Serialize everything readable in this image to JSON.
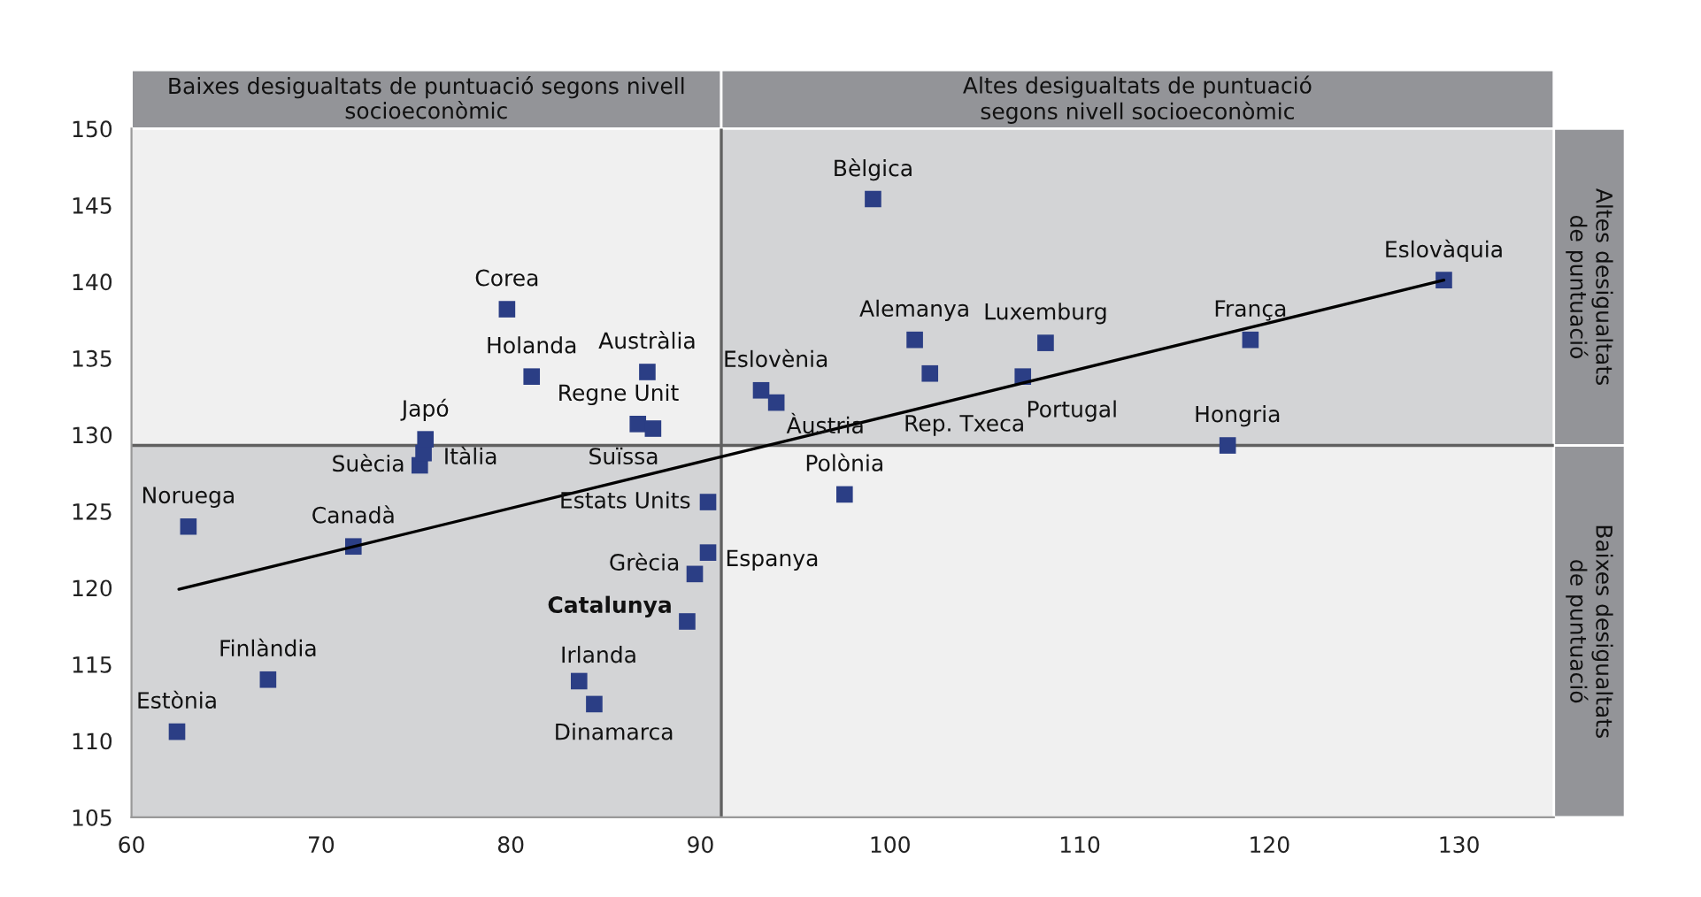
{
  "chart_data": {
    "type": "scatter",
    "xlim": [
      60,
      135
    ],
    "ylim": [
      105,
      150
    ],
    "xticks": [
      60,
      70,
      80,
      90,
      100,
      110,
      120,
      130
    ],
    "yticks": [
      105,
      110,
      115,
      120,
      125,
      130,
      135,
      140,
      145,
      150
    ],
    "grid": false,
    "series": [
      {
        "color": "#2b3e85",
        "marker": "square",
        "x": [
          62.4,
          67.2,
          63.0,
          71.7,
          83.6,
          84.4,
          89.3,
          89.7,
          90.4,
          90.4,
          75.2,
          75.4,
          75.5,
          79.8,
          81.1,
          87.2,
          86.7,
          87.5,
          93.2,
          94.0,
          99.1,
          101.3,
          102.1,
          108.2,
          107.0,
          119.0,
          129.2,
          117.8,
          97.6
        ],
        "values": [
          110.6,
          114.0,
          124.0,
          122.7,
          113.9,
          112.4,
          117.8,
          120.9,
          122.3,
          125.6,
          128.0,
          128.8,
          129.7,
          138.2,
          133.8,
          134.1,
          130.7,
          130.4,
          132.9,
          132.1,
          145.4,
          136.2,
          134.0,
          136.0,
          133.8,
          136.2,
          140.1,
          129.3,
          126.1
        ],
        "value_labels": [
          "Estònia",
          "Finlàndia",
          "Noruega",
          "Canadà",
          "Irlanda",
          "Dinamarca",
          "Catalunya",
          "Grècia",
          "Espanya",
          "Estats Units",
          "Suècia",
          "Itàlia",
          "Japó",
          "Corea",
          "Holanda",
          "Austràlia",
          "Regne Unit",
          "Suïssa",
          "Eslovènia",
          "Àustria",
          "Bèlgica",
          "Alemanya",
          "Rep. Txeca",
          "Luxemburg",
          "Portugal",
          "França",
          "Eslovàquia",
          "Hongria",
          "Polònia"
        ]
      },
      {
        "type": "line",
        "color": "#000000",
        "x": [
          62.5,
          129.2
        ],
        "values": [
          119.9,
          140.1
        ]
      }
    ],
    "ref_lines": [
      {
        "axis": "x",
        "value": 91.1,
        "color": "#606060"
      },
      {
        "axis": "y",
        "value": 129.3,
        "color": "#606060"
      }
    ],
    "annotations": [
      "Baixes desigualtats de puntuació segons nivell\nsocioeconòmic",
      "Altes desigualtats de puntuació\nsegons nivell socioeconòmic",
      "Altes desigualtats\nde puntuació",
      "Baixes desigualtats\nde puntuació"
    ]
  }
}
